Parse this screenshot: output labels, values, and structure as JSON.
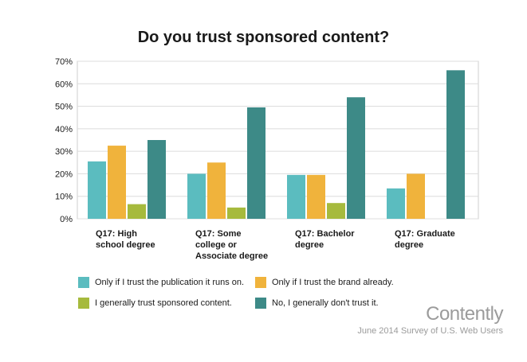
{
  "chart_data": {
    "type": "bar",
    "title": "Do you trust sponsored content?",
    "categories": [
      "Q17: High school degree",
      "Q17: Some college or Associate degree",
      "Q17: Bachelor degree",
      "Q17: Graduate degree"
    ],
    "category_lines": [
      [
        "Q17: High",
        "school degree"
      ],
      [
        "Q17: Some",
        "college or",
        "Associate degree"
      ],
      [
        "Q17: Bachelor",
        "degree"
      ],
      [
        "Q17: Graduate",
        "degree"
      ]
    ],
    "series": [
      {
        "name": "Only if I trust the publication it runs on.",
        "color": "#5bbcbf",
        "values": [
          25.5,
          20,
          19.5,
          13.5
        ]
      },
      {
        "name": "Only if I trust the brand already.",
        "color": "#f0b33c",
        "values": [
          32.5,
          25,
          19.5,
          20
        ]
      },
      {
        "name": "I generally trust sponsored content.",
        "color": "#a6ba3d",
        "values": [
          6.5,
          5,
          7,
          0
        ]
      },
      {
        "name": "No, I generally don't trust it.",
        "color": "#3d8a87",
        "values": [
          35,
          49.5,
          54,
          66
        ]
      }
    ],
    "yticks": [
      0,
      10,
      20,
      30,
      40,
      50,
      60,
      70
    ],
    "ytick_labels": [
      "0%",
      "10%",
      "20%",
      "30%",
      "40%",
      "50%",
      "60%",
      "70%"
    ],
    "ylim": [
      0,
      70
    ],
    "xlabel": "",
    "ylabel": "",
    "grid": true,
    "legend_position": "bottom"
  },
  "branding": {
    "logo_text": "Contently",
    "source_text": "June 2014 Survey of U.S. Web Users"
  }
}
